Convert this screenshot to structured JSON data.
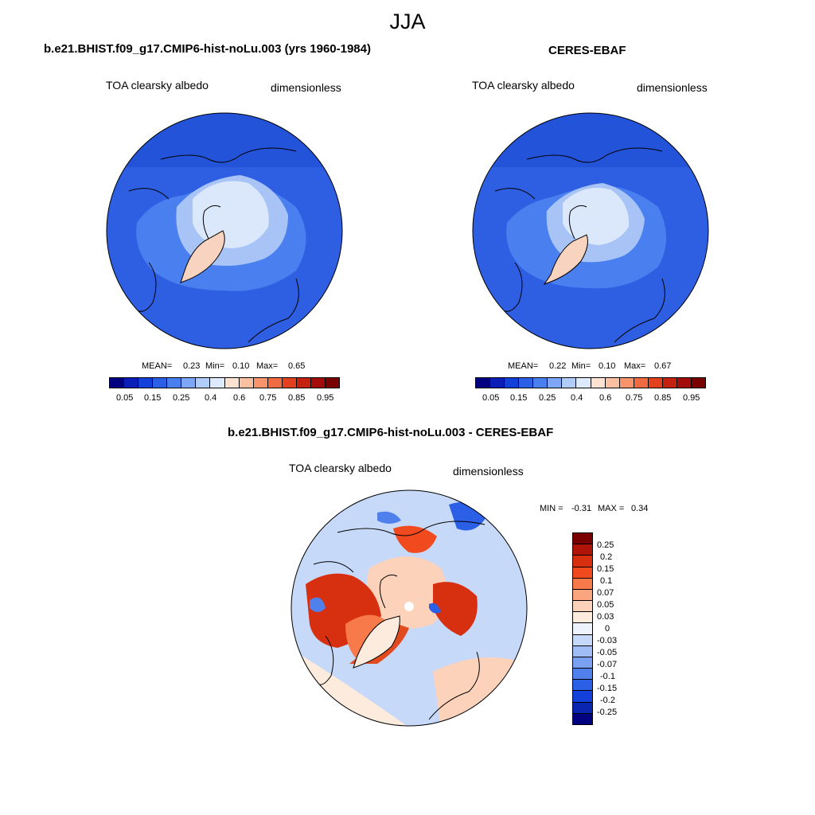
{
  "main_title": "JJA",
  "colors": {
    "abs_scale": [
      "#000080",
      "#0b1fb8",
      "#1240d8",
      "#2a5fe6",
      "#4a7ff0",
      "#7ea6f6",
      "#b0ccfa",
      "#dde9fc",
      "#fde2d2",
      "#fbc0a2",
      "#f7946c",
      "#f06a42",
      "#e2401e",
      "#c42110",
      "#a30c08",
      "#7a0000"
    ],
    "diff_scale": [
      "#7a0000",
      "#b01408",
      "#d63010",
      "#f04a1e",
      "#f87a4a",
      "#fba57e",
      "#fdd2bb",
      "#fdebde",
      "#edf3fd",
      "#c7d9f9",
      "#a0bdf5",
      "#7aa1f1",
      "#4f80ec",
      "#2a5fe6",
      "#1240d8",
      "#0a26b0",
      "#000080"
    ],
    "ocean": "#2e5fe2",
    "ocean_deep": "#1f4fd6",
    "ice_light": "#dbe8fb",
    "ice_mid": "#a8c4f6",
    "greenland": "#f8d3bf"
  },
  "panels": {
    "left": {
      "title": "b.e21.BHIST.f09_g17.CMIP6-hist-noLu.003 (yrs 1960-1984)",
      "variable": "TOA clearsky albedo",
      "units": "dimensionless",
      "mean_label": "MEAN=",
      "mean_value": "0.23",
      "min_label": "Min=",
      "min_value": "0.10",
      "max_label": "Max=",
      "max_value": "0.65",
      "colorbar_ticks": [
        "0.05",
        "0.15",
        "0.25",
        "0.4",
        "0.6",
        "0.75",
        "0.85",
        "0.95"
      ]
    },
    "right": {
      "title": "CERES-EBAF",
      "variable": "TOA clearsky albedo",
      "units": "dimensionless",
      "mean_label": "MEAN=",
      "mean_value": "0.22",
      "min_label": "Min=",
      "min_value": "0.10",
      "max_label": "Max=",
      "max_value": "0.67",
      "colorbar_ticks": [
        "0.05",
        "0.15",
        "0.25",
        "0.4",
        "0.6",
        "0.75",
        "0.85",
        "0.95"
      ]
    },
    "diff": {
      "title": "b.e21.BHIST.f09_g17.CMIP6-hist-noLu.003 - CERES-EBAF",
      "variable": "TOA clearsky albedo",
      "units": "dimensionless",
      "min_label": "MIN =",
      "min_value": "-0.31",
      "max_label": "MAX =",
      "max_value": "0.34",
      "colorbar_ticks": [
        "0.25",
        "0.2",
        "0.15",
        "0.1",
        "0.07",
        "0.05",
        "0.03",
        "0",
        "-0.03",
        "-0.05",
        "-0.07",
        "-0.1",
        "-0.15",
        "-0.2",
        "-0.25"
      ]
    }
  }
}
